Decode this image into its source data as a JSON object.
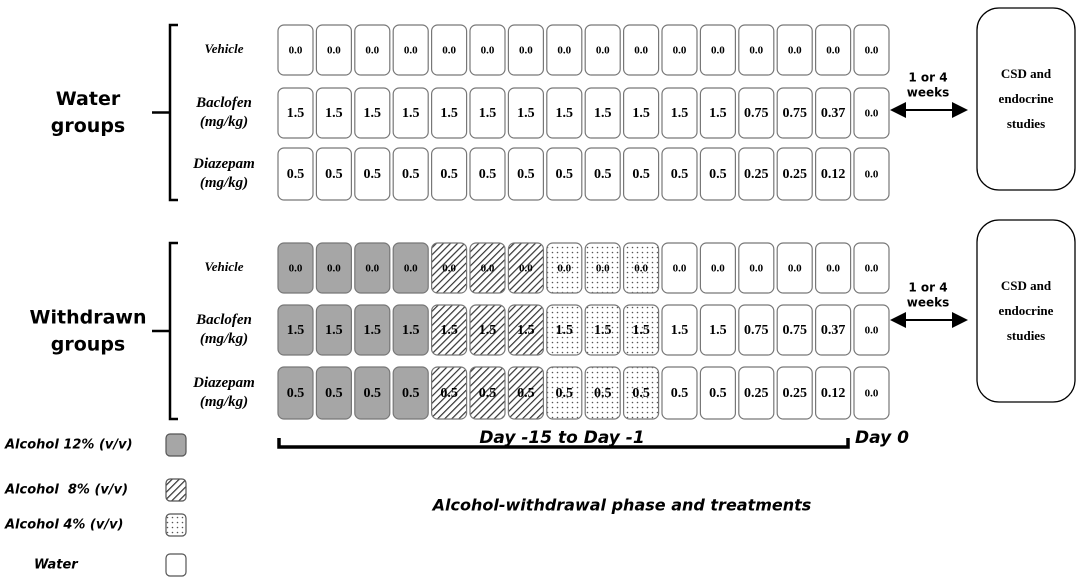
{
  "groups": [
    {
      "label": [
        "Water",
        "groups"
      ],
      "rows": [
        {
          "label": [
            "Vehicle"
          ],
          "cells": [
            "0.0",
            "0.0",
            "0.0",
            "0.0",
            "0.0",
            "0.0",
            "0.0",
            "0.0",
            "0.0",
            "0.0",
            "0.0",
            "0.0",
            "0.0",
            "0.0",
            "0.0",
            "0.0"
          ]
        },
        {
          "label": [
            "Baclofen",
            "(mg/kg)"
          ],
          "cells": [
            "1.5",
            "1.5",
            "1.5",
            "1.5",
            "1.5",
            "1.5",
            "1.5",
            "1.5",
            "1.5",
            "1.5",
            "1.5",
            "1.5",
            "0.75",
            "0.75",
            "0.37",
            "0.0"
          ]
        },
        {
          "label": [
            "Diazepam",
            "(mg/kg)"
          ],
          "cells": [
            "0.5",
            "0.5",
            "0.5",
            "0.5",
            "0.5",
            "0.5",
            "0.5",
            "0.5",
            "0.5",
            "0.5",
            "0.5",
            "0.5",
            "0.25",
            "0.25",
            "0.12",
            "0.0"
          ]
        }
      ],
      "interval": [
        "1 or 4",
        "weeks"
      ],
      "outcome": [
        "CSD and",
        "endocrine",
        "studies"
      ]
    },
    {
      "label": [
        "Withdrawn",
        "groups"
      ],
      "rows": [
        {
          "label": [
            "Vehicle"
          ],
          "cells": [
            "0.0",
            "0.0",
            "0.0",
            "0.0",
            "0.0",
            "0.0",
            "0.0",
            "0.0",
            "0.0",
            "0.0",
            "0.0",
            "0.0",
            "0.0",
            "0.0",
            "0.0",
            "0.0"
          ]
        },
        {
          "label": [
            "Baclofen",
            "(mg/kg)"
          ],
          "cells": [
            "1.5",
            "1.5",
            "1.5",
            "1.5",
            "1.5",
            "1.5",
            "1.5",
            "1.5",
            "1.5",
            "1.5",
            "1.5",
            "1.5",
            "0.75",
            "0.75",
            "0.37",
            "0.0"
          ]
        },
        {
          "label": [
            "Diazepam",
            "(mg/kg)"
          ],
          "cells": [
            "0.5",
            "0.5",
            "0.5",
            "0.5",
            "0.5",
            "0.5",
            "0.5",
            "0.5",
            "0.5",
            "0.5",
            "0.5",
            "0.5",
            "0.25",
            "0.25",
            "0.12",
            "0.0"
          ]
        }
      ],
      "interval": [
        "1 or 4",
        "weeks"
      ],
      "outcome": [
        "CSD and",
        "endocrine",
        "studies"
      ]
    }
  ],
  "timeline": {
    "period": "Day -15 to Day -1",
    "end": "Day 0"
  },
  "caption": "Alcohol-withdrawal phase and treatments",
  "legend": [
    "Alcohol 12% (v/v)",
    "Alcohol  8% (v/v)",
    "Alcohol 4% (v/v)",
    "Water"
  ]
}
